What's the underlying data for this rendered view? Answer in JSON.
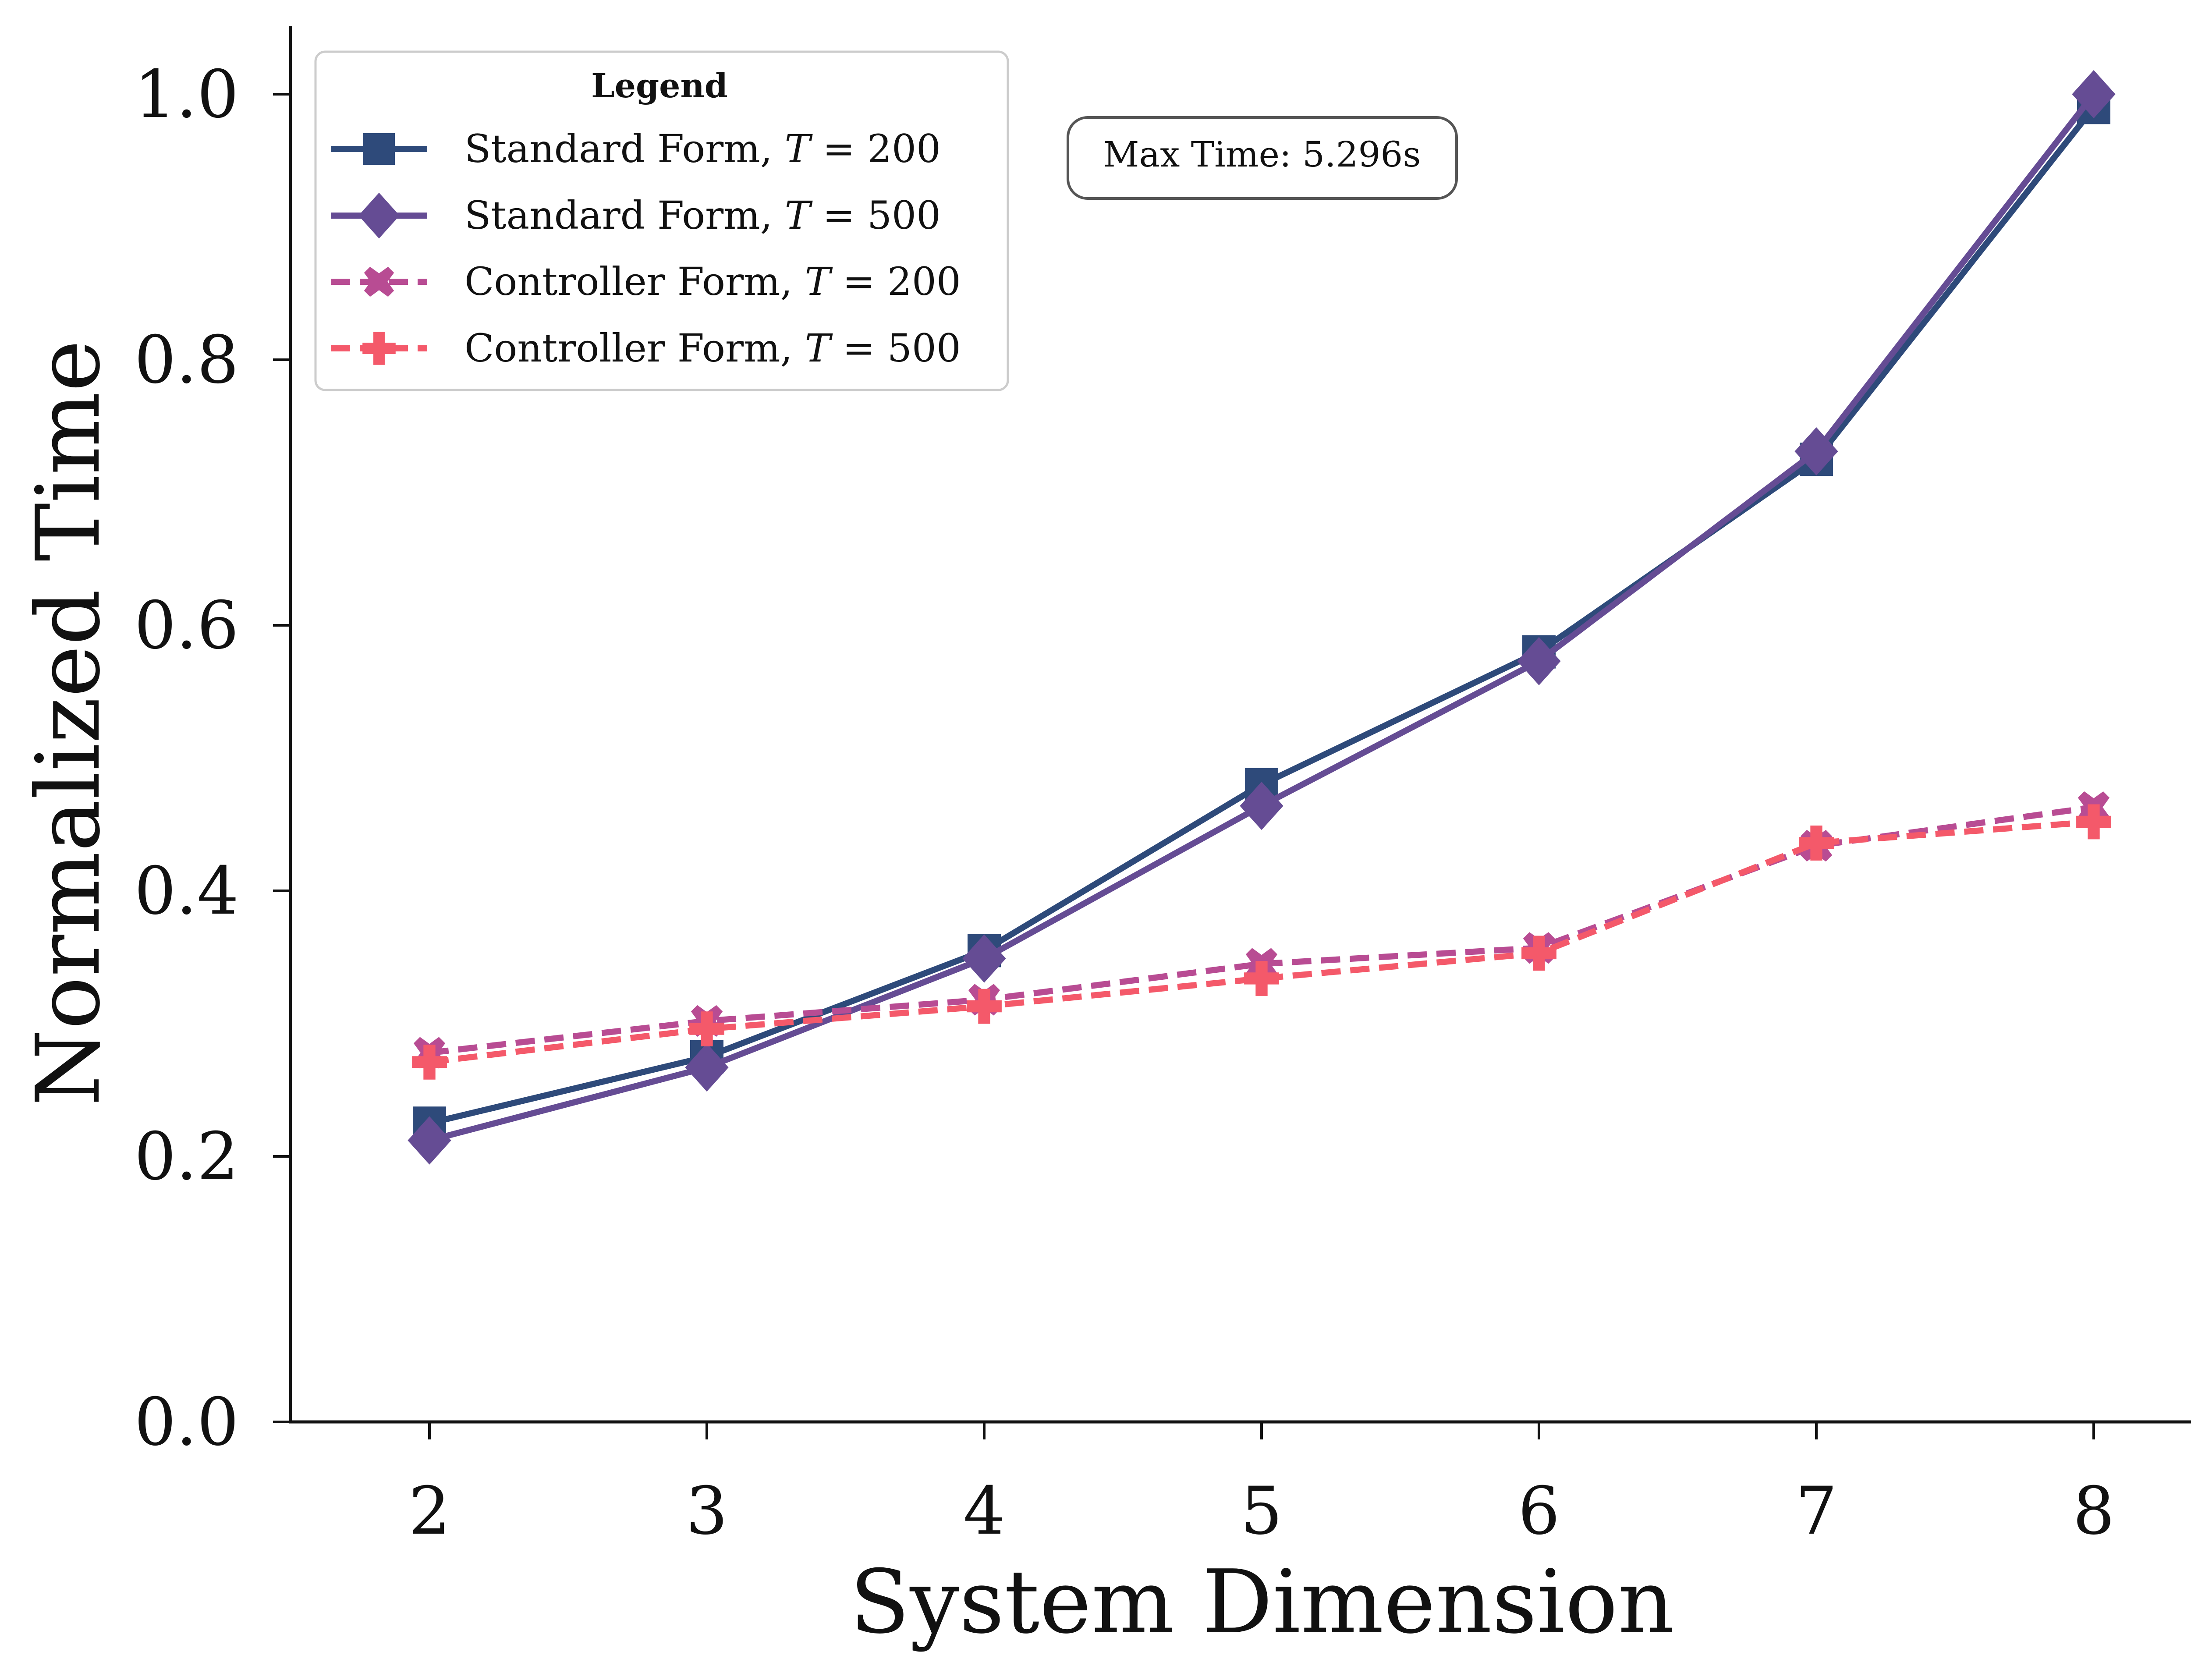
{
  "chart_data": {
    "type": "line",
    "title": "",
    "xlabel": "System Dimension",
    "ylabel": "Normalized Time",
    "x": [
      2,
      3,
      4,
      5,
      6,
      7,
      8
    ],
    "xticks": [
      "2",
      "3",
      "4",
      "5",
      "6",
      "7",
      "8"
    ],
    "yticks": [
      "0.0",
      "0.2",
      "0.4",
      "0.6",
      "0.8",
      "1.0"
    ],
    "ylim": [
      0.0,
      1.05
    ],
    "grid": false,
    "legend": {
      "title": "Legend",
      "placement": "top-left"
    },
    "annotation": "Max Time: 5.296s",
    "series": [
      {
        "name": "Standard Form, T = 200",
        "label_prefix": "Standard Form, ",
        "label_var": "T",
        "label_rest": " = 200",
        "color": "#2e4a7a",
        "marker": "square",
        "linestyle": "solid",
        "values": [
          0.225,
          0.275,
          0.355,
          0.48,
          0.58,
          0.725,
          0.99
        ]
      },
      {
        "name": "Standard Form, T = 500",
        "label_prefix": "Standard Form, ",
        "label_var": "T",
        "label_rest": " = 500",
        "color": "#654c94",
        "marker": "diamond",
        "linestyle": "solid",
        "values": [
          0.212,
          0.267,
          0.349,
          0.464,
          0.573,
          0.731,
          1.0
        ]
      },
      {
        "name": "Controller Form, T = 200",
        "label_prefix": "Controller Form, ",
        "label_var": "T",
        "label_rest": " = 200",
        "color": "#b84c93",
        "marker": "x",
        "linestyle": "dashed",
        "values": [
          0.278,
          0.302,
          0.318,
          0.345,
          0.357,
          0.434,
          0.463
        ]
      },
      {
        "name": "Controller Form, T = 500",
        "label_prefix": "Controller Form, ",
        "label_var": "T",
        "label_rest": " = 500",
        "color": "#f4596a",
        "marker": "plus",
        "linestyle": "dashed",
        "values": [
          0.271,
          0.296,
          0.313,
          0.334,
          0.353,
          0.436,
          0.452
        ]
      }
    ]
  }
}
